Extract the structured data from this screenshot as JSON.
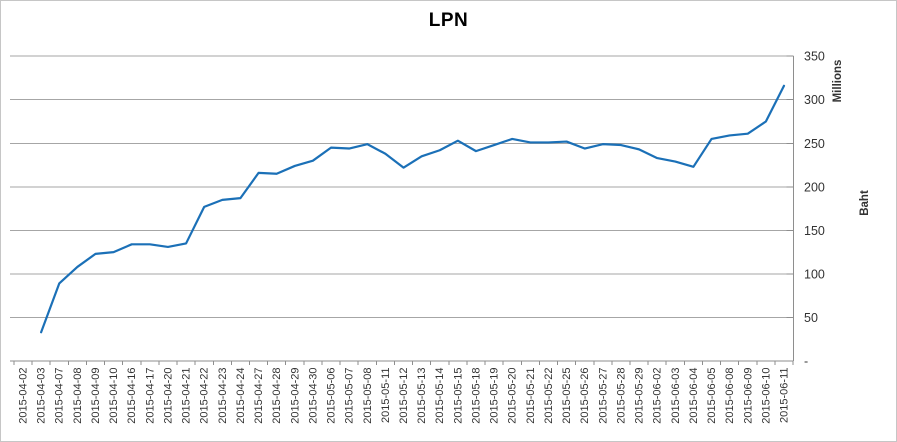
{
  "chart_data": {
    "type": "line",
    "title": "LPN",
    "xlabel": "",
    "ylabel": "Baht",
    "units_label": "Millions",
    "value_axis_side": "right",
    "ylim": [
      0,
      350
    ],
    "y_tick_interval": 50,
    "y_ticks": [
      {
        "value": 0,
        "label": "-"
      },
      {
        "value": 50,
        "label": "50"
      },
      {
        "value": 100,
        "label": "100"
      },
      {
        "value": 150,
        "label": "150"
      },
      {
        "value": 200,
        "label": "200"
      },
      {
        "value": 250,
        "label": "250"
      },
      {
        "value": 300,
        "label": "300"
      },
      {
        "value": 350,
        "label": "350"
      }
    ],
    "grid": true,
    "legend": "none",
    "categories": [
      "2015-04-02",
      "2015-04-03",
      "2015-04-07",
      "2015-04-08",
      "2015-04-09",
      "2015-04-10",
      "2015-04-16",
      "2015-04-17",
      "2015-04-20",
      "2015-04-21",
      "2015-04-22",
      "2015-04-23",
      "2015-04-24",
      "2015-04-27",
      "2015-04-28",
      "2015-04-29",
      "2015-04-30",
      "2015-05-06",
      "2015-05-07",
      "2015-05-08",
      "2015-05-11",
      "2015-05-12",
      "2015-05-13",
      "2015-05-14",
      "2015-05-15",
      "2015-05-18",
      "2015-05-19",
      "2015-05-20",
      "2015-05-21",
      "2015-05-22",
      "2015-05-25",
      "2015-05-26",
      "2015-05-27",
      "2015-05-28",
      "2015-05-29",
      "2015-06-02",
      "2015-06-03",
      "2015-06-04",
      "2015-06-05",
      "2015-06-08",
      "2015-06-09",
      "2015-06-10",
      "2015-06-11"
    ],
    "series": [
      {
        "name": "LPN",
        "color": "#1b70b7",
        "values": [
          null,
          33,
          89,
          108,
          123,
          125,
          134,
          134,
          131,
          135,
          177,
          185,
          187,
          216,
          215,
          224,
          230,
          245,
          244,
          249,
          238,
          222,
          235,
          242,
          253,
          241,
          248,
          255,
          251,
          251,
          252,
          244,
          249,
          248,
          243,
          233,
          229,
          223,
          255,
          259,
          261,
          275,
          316
        ]
      }
    ],
    "colors": {
      "line": "#1b70b7",
      "gridline": "#a6a6a6",
      "axis": "#8e8e8e",
      "tick_label": "#333333",
      "title": "#000000",
      "background": "#ffffff",
      "border": "#c6c6c6"
    }
  }
}
